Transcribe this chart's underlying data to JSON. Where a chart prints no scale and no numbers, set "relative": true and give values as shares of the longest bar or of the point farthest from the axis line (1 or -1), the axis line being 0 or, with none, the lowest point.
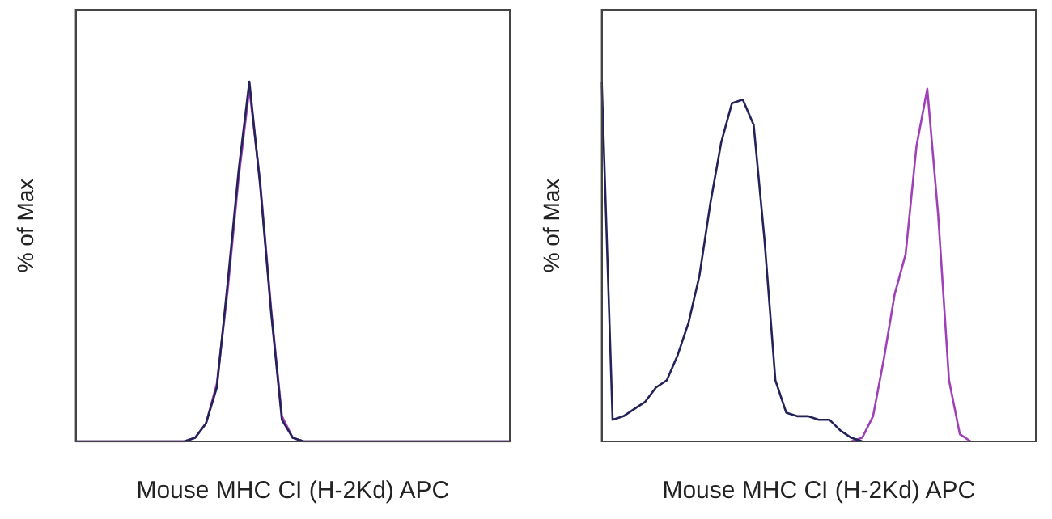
{
  "chart_data": [
    {
      "type": "line",
      "relative": true,
      "marker": "none",
      "xlabel": "Mouse MHC CI (H-2Kd) APC",
      "ylabel": "% of Max",
      "categories": [
        null,
        null,
        null,
        null,
        null,
        null,
        null,
        null,
        null,
        null,
        null,
        null,
        null,
        null,
        null,
        null,
        null,
        null,
        null,
        null,
        null,
        null,
        null,
        null,
        null,
        null,
        null,
        null,
        null,
        null,
        null,
        null,
        null,
        null,
        null,
        null,
        null,
        null,
        null,
        null,
        null
      ],
      "series": [
        {
          "color": "#23235a",
          "values": [
            0,
            0,
            0,
            0,
            0,
            0,
            0,
            0,
            0,
            0,
            0,
            0.01,
            0.05,
            0.15,
            0.44,
            0.75,
            1,
            0.71,
            0.36,
            0.06,
            0.01,
            0,
            0,
            0,
            0,
            0,
            0,
            0,
            0,
            0,
            0,
            0,
            0,
            0,
            0,
            0,
            0,
            0,
            0,
            0,
            0
          ]
        },
        {
          "color": "#a040b8",
          "values": [
            0,
            0,
            0,
            0,
            0,
            0,
            0,
            0,
            0,
            0,
            0,
            0.01,
            0.05,
            0.16,
            0.42,
            0.73,
            0.98,
            0.72,
            0.37,
            0.07,
            0.01,
            0,
            0,
            0,
            0,
            0,
            0,
            0,
            0,
            0,
            0,
            0,
            0,
            0,
            0,
            0,
            0,
            0,
            0,
            0,
            0
          ]
        }
      ]
    },
    {
      "type": "line",
      "relative": true,
      "marker": "none",
      "xlabel": "Mouse MHC CI (H-2Kd) APC",
      "ylabel": "% of Max",
      "categories": [
        null,
        null,
        null,
        null,
        null,
        null,
        null,
        null,
        null,
        null,
        null,
        null,
        null,
        null,
        null,
        null,
        null,
        null,
        null,
        null,
        null,
        null,
        null,
        null,
        null,
        null,
        null,
        null,
        null,
        null,
        null,
        null,
        null,
        null,
        null,
        null,
        null,
        null,
        null,
        null,
        null
      ],
      "series": [
        {
          "color": "#23235a",
          "values": [
            1,
            0.06,
            0.07,
            0.09,
            0.11,
            0.15,
            0.17,
            0.24,
            0.33,
            0.46,
            0.66,
            0.83,
            0.94,
            0.95,
            0.88,
            0.56,
            0.17,
            0.08,
            0.07,
            0.07,
            0.06,
            0.06,
            0.03,
            0.01,
            0,
            null,
            null,
            null,
            null,
            null,
            null,
            null,
            null,
            null,
            null,
            null,
            null,
            null,
            null,
            null,
            null
          ]
        },
        {
          "color": "#a040b8",
          "values": [
            null,
            null,
            null,
            null,
            null,
            null,
            null,
            null,
            null,
            null,
            null,
            null,
            null,
            null,
            null,
            null,
            null,
            null,
            null,
            null,
            null,
            null,
            null,
            0,
            0.01,
            0.07,
            0.23,
            0.41,
            0.52,
            0.82,
            0.98,
            0.63,
            0.17,
            0.02,
            0,
            null,
            null,
            null,
            null,
            null,
            null
          ]
        }
      ]
    }
  ]
}
